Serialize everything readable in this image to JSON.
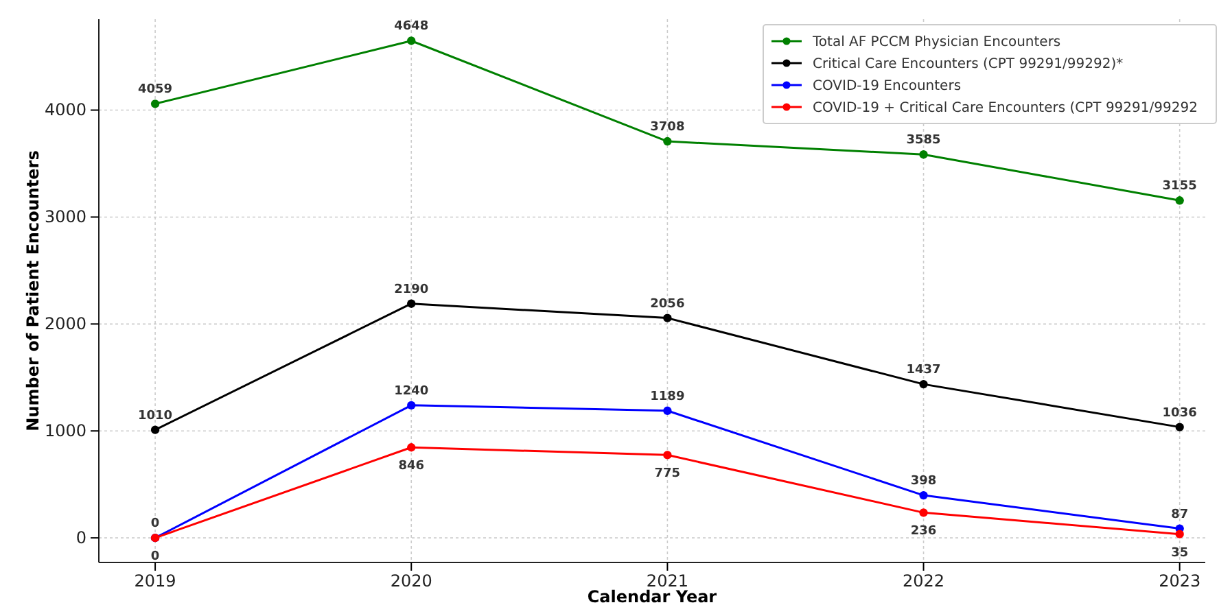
{
  "chart_data": {
    "type": "line",
    "xlabel": "Calendar Year",
    "ylabel": "Number of Patient Encounters",
    "x": [
      2019,
      2020,
      2021,
      2022,
      2023
    ],
    "xlim": [
      2018.78,
      2023.1
    ],
    "xticks": [
      2019,
      2020,
      2021,
      2022,
      2023
    ],
    "ylim": [
      -230,
      4850
    ],
    "yticks": [
      0,
      1000,
      2000,
      3000,
      4000
    ],
    "grid": true,
    "legend": "top right",
    "marker": "circle",
    "line_style": "solid",
    "data_labels": true,
    "series": [
      {
        "name": "Total AF PCCM Physician Encounters",
        "color": "#008000",
        "values": [
          4059,
          4648,
          3708,
          3585,
          3155
        ]
      },
      {
        "name": "Critical Care Encounters (CPT 99291/99292)*",
        "color": "#000000",
        "values": [
          1010,
          2190,
          2056,
          1437,
          1036
        ]
      },
      {
        "name": "COVID-19 Encounters",
        "color": "#0000ff",
        "values": [
          0,
          1240,
          1189,
          398,
          87
        ]
      },
      {
        "name": "COVID-19 + Critical Care Encounters (CPT 99291/99292",
        "color": "#ff0000",
        "values": [
          0,
          846,
          775,
          236,
          35
        ]
      }
    ]
  }
}
